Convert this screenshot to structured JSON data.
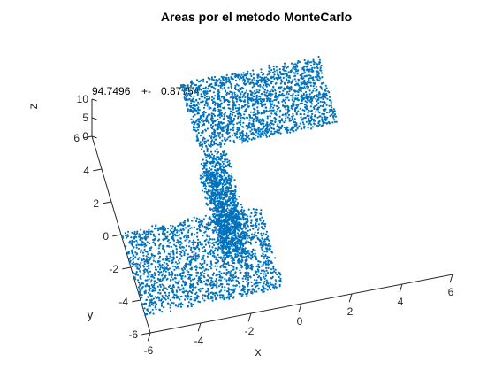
{
  "chart_data": {
    "type": "scatter",
    "title": "Areas por el metodo MonteCarlo",
    "annotation": {
      "value": "94.7496",
      "separator": "+-",
      "error": "0.87754"
    },
    "xlabel": "x",
    "ylabel": "y",
    "zlabel": "z",
    "xlim": [
      -6,
      6
    ],
    "ylim": [
      -6,
      6
    ],
    "zlim": [
      0,
      10
    ],
    "xticks": [
      "-6",
      "-4",
      "-2",
      "0",
      "2",
      "4",
      "6"
    ],
    "yticks": [
      "-6",
      "-4",
      "-2",
      "0",
      "2",
      "4",
      "6"
    ],
    "zticks": [
      "0",
      "5",
      "10"
    ],
    "grid": false,
    "marker_color": "#0072BD",
    "series": [
      {
        "point_count": 5000,
        "regions": [
          {
            "x": [
              -6,
              -0.5
            ],
            "y": [
              -5,
              0
            ],
            "z": [
              0,
              1
            ],
            "share": 0.38
          },
          {
            "x": [
              -2.5,
              -1.5
            ],
            "y": [
              -3,
              2
            ],
            "z": [
              0,
              10
            ],
            "share": 0.24
          },
          {
            "x": [
              -2.5,
              3
            ],
            "y": [
              2,
              6
            ],
            "z": [
              9,
              10
            ],
            "share": 0.38
          }
        ]
      }
    ]
  }
}
